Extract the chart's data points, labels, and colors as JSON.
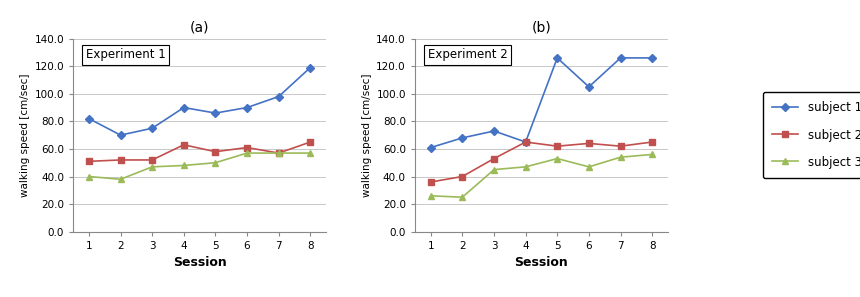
{
  "sessions": [
    1,
    2,
    3,
    4,
    5,
    6,
    7,
    8
  ],
  "exp1": {
    "title": "Experiment 1",
    "subject1": [
      82.0,
      70.0,
      75.0,
      90.0,
      86.0,
      90.0,
      98.0,
      119.0
    ],
    "subject2": [
      51.0,
      52.0,
      52.0,
      63.0,
      58.0,
      61.0,
      57.0,
      65.0
    ],
    "subject3": [
      40.0,
      38.0,
      47.0,
      48.0,
      50.0,
      57.0,
      57.0,
      57.0
    ]
  },
  "exp2": {
    "title": "Experiment 2",
    "subject1": [
      61.0,
      68.0,
      73.0,
      65.0,
      126.0,
      105.0,
      126.0,
      126.0
    ],
    "subject2": [
      36.0,
      40.0,
      53.0,
      65.0,
      62.0,
      64.0,
      62.0,
      65.0
    ],
    "subject3": [
      26.0,
      25.0,
      45.0,
      47.0,
      53.0,
      47.0,
      54.0,
      56.0
    ]
  },
  "color_subject1": "#4472C4",
  "color_subject2": "#C0504D",
  "color_subject3": "#9BBB59",
  "ylabel": "walking speed [cm/sec]",
  "xlabel": "Session",
  "ylim": [
    0.0,
    140.0
  ],
  "yticks": [
    0.0,
    20.0,
    40.0,
    60.0,
    80.0,
    100.0,
    120.0,
    140.0
  ],
  "label_subject1": "subject 1",
  "label_subject2": "subject 2",
  "label_subject3": "subject 3",
  "title_a": "(a)",
  "title_b": "(b)"
}
